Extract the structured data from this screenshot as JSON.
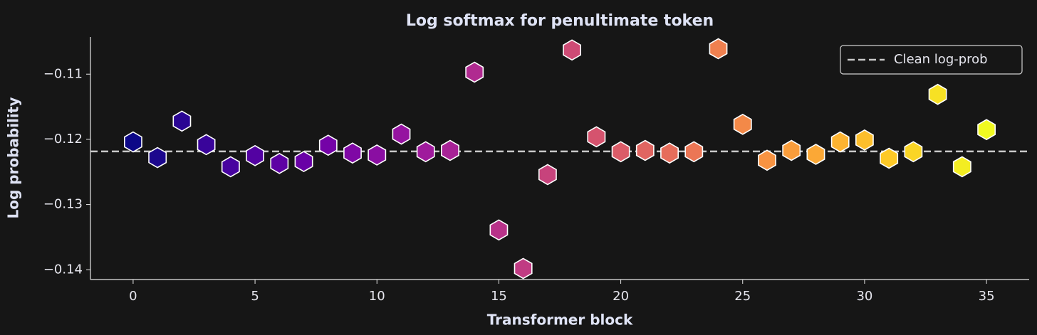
{
  "chart_data": {
    "type": "scatter",
    "title": "Log softmax for penultimate token",
    "x_label": "Transformer block",
    "y_label": "Log probability",
    "x": [
      0,
      1,
      2,
      3,
      4,
      5,
      6,
      7,
      8,
      9,
      10,
      11,
      12,
      13,
      14,
      15,
      16,
      17,
      18,
      19,
      20,
      21,
      22,
      23,
      24,
      25,
      26,
      27,
      28,
      29,
      30,
      31,
      32,
      33,
      34,
      35
    ],
    "values": [
      -0.1204,
      -0.1228,
      -0.1172,
      -0.1208,
      -0.1242,
      -0.1225,
      -0.1237,
      -0.1234,
      -0.1209,
      -0.1221,
      -0.1224,
      -0.1192,
      -0.1219,
      -0.1217,
      -0.1097,
      -0.1339,
      -0.1398,
      -0.1254,
      -0.1063,
      -0.1196,
      -0.1219,
      -0.1217,
      -0.1221,
      -0.1219,
      -0.1061,
      -0.1177,
      -0.1232,
      -0.1217,
      -0.1223,
      -0.1204,
      -0.1201,
      -0.1229,
      -0.1219,
      -0.1131,
      -0.1242,
      -0.1185
    ],
    "colormap": "plasma",
    "reference_line": {
      "name": "Clean log-prob",
      "value": -0.12185,
      "color": "#c8c8c8"
    },
    "legend_position": "upper right",
    "xlim": [
      -1.75,
      36.75
    ],
    "xticks": [
      0,
      5,
      10,
      15,
      20,
      25,
      30,
      35
    ],
    "ylim": [
      -0.1415,
      -0.1043
    ],
    "yticks": [
      {
        "value": -0.14,
        "label": "−0.14"
      },
      {
        "value": -0.13,
        "label": "−0.13"
      },
      {
        "value": -0.12,
        "label": "−0.12"
      },
      {
        "value": -0.11,
        "label": "−0.11"
      }
    ]
  }
}
